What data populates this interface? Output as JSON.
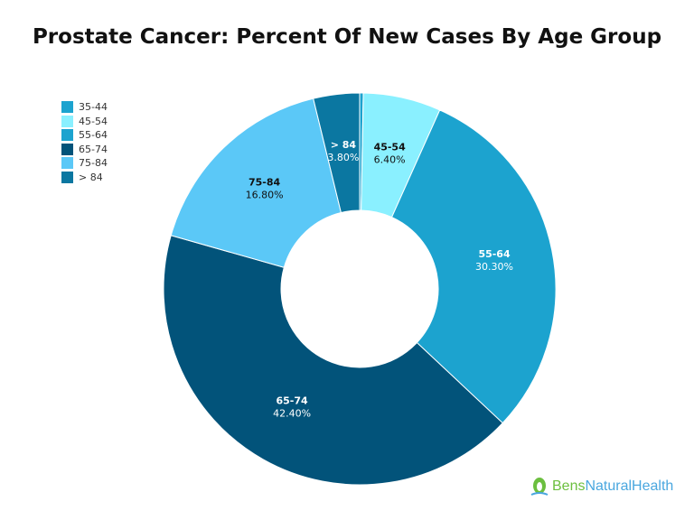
{
  "title": "Prostate Cancer: Percent Of New Cases By Age Group",
  "logo": {
    "part1": "Bens",
    "part2": "NaturalHealth",
    "color1": "#6cbf3f",
    "color2": "#4aa7df"
  },
  "chart_data": {
    "type": "pie",
    "donut": true,
    "title": "Prostate Cancer: Percent Of New Cases By Age Group",
    "legend_position": "top-left",
    "slices": [
      {
        "label": "35-44",
        "value": 0.3,
        "display": "",
        "color": "#1ca3cf",
        "text_color": "#ffffff"
      },
      {
        "label": "45-54",
        "value": 6.4,
        "display": "6.40%",
        "color": "#8af0ff",
        "text_color": "#111111"
      },
      {
        "label": "55-64",
        "value": 30.3,
        "display": "30.30%",
        "color": "#1ca3cf",
        "text_color": "#ffffff"
      },
      {
        "label": "65-74",
        "value": 42.4,
        "display": "42.40%",
        "color": "#02537a",
        "text_color": "#ffffff"
      },
      {
        "label": "75-84",
        "value": 16.8,
        "display": "16.80%",
        "color": "#5bc8f7",
        "text_color": "#111111"
      },
      {
        "label": "> 84",
        "value": 3.8,
        "display": "3.80%",
        "color": "#0b77a1",
        "text_color": "#ffffff"
      }
    ]
  }
}
